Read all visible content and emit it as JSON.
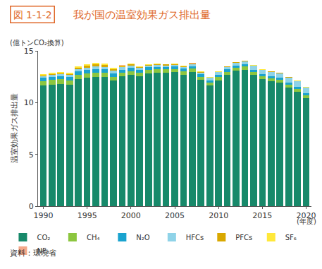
{
  "chart_data": {
    "type": "bar",
    "stacked": true,
    "figure_label": "図 1-1-2",
    "title": "我が国の温室効果ガス排出量",
    "y_unit": "(億トンCO₂換算)",
    "ylabel": "温室効果ガス排出量",
    "x_unit": "(年度)",
    "source": "資料：環境省",
    "legend": "bottom",
    "grid": false,
    "x": [
      1990,
      1991,
      1992,
      1993,
      1994,
      1995,
      1996,
      1997,
      1998,
      1999,
      2000,
      2001,
      2002,
      2003,
      2004,
      2005,
      2006,
      2007,
      2008,
      2009,
      2010,
      2011,
      2012,
      2013,
      2014,
      2015,
      2016,
      2017,
      2018,
      2019,
      2020
    ],
    "xlim": [
      1989.4,
      2020.6
    ],
    "xticks": [
      1990,
      1995,
      2000,
      2005,
      2010,
      2015,
      2020
    ],
    "ylim": [
      0,
      15
    ],
    "yticks": [
      0,
      5,
      10,
      15
    ],
    "series": [
      {
        "name": "CO₂",
        "color": "#17896a",
        "values": [
          11.64,
          11.74,
          11.82,
          11.74,
          12.28,
          12.4,
          12.51,
          12.47,
          12.13,
          12.52,
          12.68,
          12.54,
          12.82,
          12.87,
          12.87,
          12.93,
          12.69,
          12.95,
          12.18,
          11.64,
          12.17,
          12.67,
          13.06,
          13.17,
          12.68,
          12.26,
          12.06,
          11.91,
          11.45,
          11.07,
          10.44
        ]
      },
      {
        "name": "CH₄",
        "color": "#8cc63f",
        "values": [
          0.44,
          0.44,
          0.43,
          0.43,
          0.42,
          0.41,
          0.4,
          0.39,
          0.38,
          0.37,
          0.37,
          0.36,
          0.35,
          0.34,
          0.34,
          0.33,
          0.33,
          0.32,
          0.32,
          0.31,
          0.31,
          0.31,
          0.3,
          0.3,
          0.3,
          0.3,
          0.29,
          0.29,
          0.29,
          0.28,
          0.28
        ]
      },
      {
        "name": "N₂O",
        "color": "#1aa3cf",
        "values": [
          0.32,
          0.31,
          0.32,
          0.31,
          0.32,
          0.33,
          0.34,
          0.34,
          0.32,
          0.27,
          0.3,
          0.26,
          0.25,
          0.25,
          0.25,
          0.25,
          0.25,
          0.24,
          0.23,
          0.22,
          0.22,
          0.22,
          0.21,
          0.21,
          0.21,
          0.21,
          0.2,
          0.2,
          0.2,
          0.2,
          0.2
        ]
      },
      {
        "name": "HFCs",
        "color": "#8fd3e8",
        "values": [
          0.16,
          0.16,
          0.17,
          0.17,
          0.21,
          0.25,
          0.25,
          0.24,
          0.24,
          0.24,
          0.23,
          0.19,
          0.16,
          0.16,
          0.12,
          0.13,
          0.15,
          0.17,
          0.19,
          0.21,
          0.24,
          0.26,
          0.3,
          0.32,
          0.36,
          0.39,
          0.43,
          0.45,
          0.47,
          0.5,
          0.52
        ]
      },
      {
        "name": "PFCs",
        "color": "#d9a800",
        "values": [
          0.066,
          0.075,
          0.077,
          0.1,
          0.131,
          0.176,
          0.18,
          0.183,
          0.16,
          0.107,
          0.118,
          0.096,
          0.09,
          0.087,
          0.093,
          0.086,
          0.09,
          0.077,
          0.057,
          0.04,
          0.042,
          0.038,
          0.03,
          0.033,
          0.034,
          0.033,
          0.034,
          0.035,
          0.034,
          0.034,
          0.035
        ]
      },
      {
        "name": "SF₆",
        "color": "#ffe83a",
        "values": [
          0.129,
          0.14,
          0.15,
          0.155,
          0.153,
          0.164,
          0.173,
          0.154,
          0.132,
          0.095,
          0.072,
          0.062,
          0.056,
          0.054,
          0.054,
          0.051,
          0.052,
          0.047,
          0.041,
          0.024,
          0.024,
          0.022,
          0.022,
          0.021,
          0.021,
          0.021,
          0.022,
          0.021,
          0.021,
          0.021,
          0.02
        ]
      },
      {
        "name": "NF₃",
        "color": "#f4a88a",
        "values": [
          0.0003,
          0.0003,
          0.0004,
          0.0004,
          0.0007,
          0.002,
          0.002,
          0.003,
          0.004,
          0.004,
          0.003,
          0.003,
          0.004,
          0.004,
          0.006,
          0.012,
          0.014,
          0.015,
          0.015,
          0.015,
          0.015,
          0.014,
          0.016,
          0.015,
          0.016,
          0.006,
          0.006,
          0.004,
          0.003,
          0.003,
          0.002
        ]
      }
    ]
  }
}
